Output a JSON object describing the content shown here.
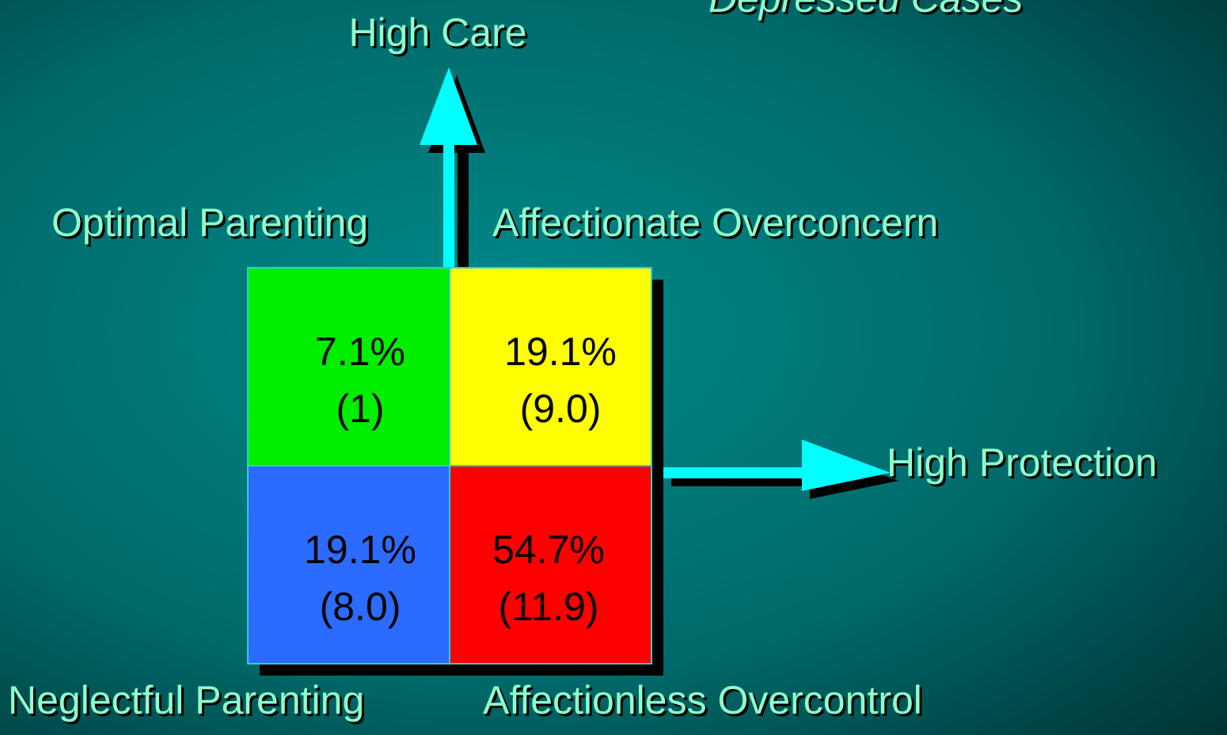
{
  "title": "Depressed Cases",
  "axes": {
    "y": "High Care",
    "x": "High Protection"
  },
  "quadrants": [
    {
      "label": "Optimal Parenting",
      "percent": "7.1%",
      "value": "(1)",
      "color": "#00ee00"
    },
    {
      "label": "Affectionate Overconcern",
      "percent": "19.1%",
      "value": "(9.0)",
      "color": "#ffff00"
    },
    {
      "label": "Neglectful Parenting",
      "percent": "19.1%",
      "value": "(8.0)",
      "color": "#2b6bff"
    },
    {
      "label": "Affectionless Overcontrol",
      "percent": "54.7%",
      "value": "(11.9)",
      "color": "#ff0000"
    }
  ]
}
